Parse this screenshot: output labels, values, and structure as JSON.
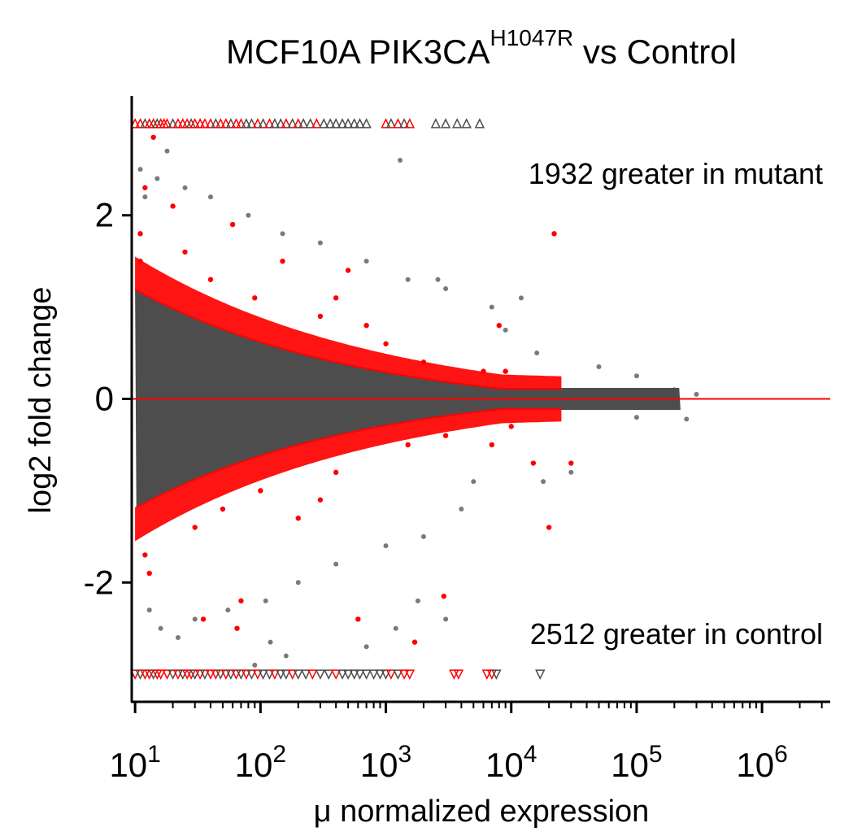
{
  "chart_data": {
    "type": "scatter",
    "title": {
      "prefix": "MCF10A  PIK3CA",
      "superscript": "H1047R",
      "suffix": " vs Control"
    },
    "xlabel": "μ normalized expression",
    "ylabel": "log2 fold change",
    "x_scale": "log10",
    "xlim": [
      9.4,
      3500000
    ],
    "ylim": [
      -3.3,
      3.3
    ],
    "x_ticks": [
      {
        "value": 10,
        "base": "10",
        "exp": "1"
      },
      {
        "value": 100,
        "base": "10",
        "exp": "2"
      },
      {
        "value": 1000,
        "base": "10",
        "exp": "3"
      },
      {
        "value": 10000,
        "base": "10",
        "exp": "4"
      },
      {
        "value": 100000,
        "base": "10",
        "exp": "5"
      },
      {
        "value": 1000000,
        "base": "10",
        "exp": "6"
      }
    ],
    "y_ticks": [
      {
        "value": 2,
        "label": "2"
      },
      {
        "value": 0,
        "label": "0"
      },
      {
        "value": -2,
        "label": "-2"
      }
    ],
    "reference_line": {
      "y": 0,
      "color": "#ff0000"
    },
    "clip_value": 3,
    "grid": false,
    "legend": "none",
    "colors": {
      "not_significant": "#4d4d4d",
      "significant": "#ff0000"
    },
    "annotations": {
      "up": "1932 greater in mutant",
      "down": "2512 greater in control"
    },
    "counts": {
      "up": 1932,
      "down": 2512
    },
    "series": [
      {
        "points": [
          [
            11,
            2.5
          ],
          [
            12,
            2.2
          ],
          [
            13,
            -2.3
          ],
          [
            15,
            2.4
          ],
          [
            16,
            -2.5
          ],
          [
            18,
            2.7
          ],
          [
            22,
            -2.6
          ],
          [
            25,
            2.3
          ],
          [
            30,
            -2.4
          ],
          [
            40,
            2.2
          ],
          [
            55,
            -2.3
          ],
          [
            80,
            2.0
          ],
          [
            110,
            -2.2
          ],
          [
            150,
            1.8
          ],
          [
            200,
            -2.0
          ],
          [
            300,
            1.7
          ],
          [
            400,
            -1.8
          ],
          [
            700,
            1.5
          ],
          [
            1000,
            -1.6
          ],
          [
            1500,
            1.3
          ],
          [
            2000,
            -1.5
          ],
          [
            3000,
            1.2
          ],
          [
            4000,
            -1.2
          ],
          [
            2600,
            1.3
          ],
          [
            1300,
            2.6
          ],
          [
            16000,
            0.5
          ],
          [
            9000,
            0.75
          ],
          [
            50000,
            0.35
          ],
          [
            30000,
            -0.8
          ],
          [
            100000,
            -0.2
          ],
          [
            200000,
            0.1
          ],
          [
            300000,
            0.05
          ],
          [
            250000,
            -0.22
          ],
          [
            100000,
            0.25
          ],
          [
            7000,
            1.0
          ],
          [
            5000,
            -0.9
          ],
          [
            1800,
            -2.2
          ],
          [
            1200,
            -2.5
          ],
          [
            700,
            -2.7
          ],
          [
            160,
            -2.8
          ],
          [
            90,
            -2.9
          ],
          [
            120,
            -2.65
          ],
          [
            3000,
            -2.4
          ],
          [
            12000,
            1.1
          ],
          [
            18000,
            -0.9
          ]
        ]
      },
      {
        "points": [
          [
            11,
            1.5
          ],
          [
            11,
            1.8
          ],
          [
            12,
            -1.7
          ],
          [
            13,
            -1.9
          ],
          [
            12,
            2.3
          ],
          [
            14,
            2.85
          ],
          [
            20,
            2.1
          ],
          [
            25,
            1.6
          ],
          [
            30,
            -1.4
          ],
          [
            40,
            1.3
          ],
          [
            50,
            -1.2
          ],
          [
            60,
            1.9
          ],
          [
            70,
            -2.2
          ],
          [
            90,
            1.1
          ],
          [
            100,
            -1.0
          ],
          [
            150,
            1.5
          ],
          [
            200,
            -1.3
          ],
          [
            300,
            0.9
          ],
          [
            400,
            -0.8
          ],
          [
            500,
            1.4
          ],
          [
            700,
            0.8
          ],
          [
            1000,
            0.6
          ],
          [
            1500,
            -0.5
          ],
          [
            2000,
            0.4
          ],
          [
            3000,
            -0.4
          ],
          [
            6000,
            0.3
          ],
          [
            9000,
            0.3
          ],
          [
            10000,
            -0.3
          ],
          [
            22000,
            1.8
          ],
          [
            20000,
            -1.4
          ],
          [
            15000,
            -0.7
          ],
          [
            8000,
            0.8
          ],
          [
            1700,
            -2.65
          ],
          [
            600,
            -2.4
          ],
          [
            2900,
            -2.15
          ],
          [
            65,
            -2.5
          ],
          [
            35,
            -2.4
          ],
          [
            400,
            1.1
          ],
          [
            300,
            -1.1
          ],
          [
            7000,
            -0.5
          ],
          [
            30000,
            -0.7
          ]
        ]
      }
    ],
    "clipped": {
      "up": [
        {
          "x": 10,
          "sig": true
        },
        {
          "x": 11,
          "sig": true
        },
        {
          "x": 12,
          "sig": false
        },
        {
          "x": 13,
          "sig": true
        },
        {
          "x": 14,
          "sig": true
        },
        {
          "x": 15,
          "sig": false
        },
        {
          "x": 16,
          "sig": true
        },
        {
          "x": 17,
          "sig": true
        },
        {
          "x": 18,
          "sig": true
        },
        {
          "x": 20,
          "sig": false
        },
        {
          "x": 22,
          "sig": true
        },
        {
          "x": 24,
          "sig": true
        },
        {
          "x": 26,
          "sig": true
        },
        {
          "x": 28,
          "sig": false
        },
        {
          "x": 30,
          "sig": true
        },
        {
          "x": 33,
          "sig": true
        },
        {
          "x": 36,
          "sig": true
        },
        {
          "x": 40,
          "sig": true
        },
        {
          "x": 44,
          "sig": false
        },
        {
          "x": 48,
          "sig": true
        },
        {
          "x": 53,
          "sig": true
        },
        {
          "x": 58,
          "sig": false
        },
        {
          "x": 64,
          "sig": true
        },
        {
          "x": 70,
          "sig": true
        },
        {
          "x": 77,
          "sig": false
        },
        {
          "x": 85,
          "sig": false
        },
        {
          "x": 95,
          "sig": true
        },
        {
          "x": 105,
          "sig": false
        },
        {
          "x": 118,
          "sig": true
        },
        {
          "x": 130,
          "sig": false
        },
        {
          "x": 145,
          "sig": false
        },
        {
          "x": 160,
          "sig": true
        },
        {
          "x": 180,
          "sig": false
        },
        {
          "x": 200,
          "sig": true
        },
        {
          "x": 220,
          "sig": false
        },
        {
          "x": 250,
          "sig": false
        },
        {
          "x": 280,
          "sig": true
        },
        {
          "x": 320,
          "sig": false
        },
        {
          "x": 360,
          "sig": false
        },
        {
          "x": 400,
          "sig": false
        },
        {
          "x": 450,
          "sig": false
        },
        {
          "x": 500,
          "sig": false
        },
        {
          "x": 560,
          "sig": false
        },
        {
          "x": 620,
          "sig": false
        },
        {
          "x": 700,
          "sig": false
        },
        {
          "x": 1000,
          "sig": true
        },
        {
          "x": 1100,
          "sig": false
        },
        {
          "x": 1250,
          "sig": true
        },
        {
          "x": 1400,
          "sig": false
        },
        {
          "x": 1550,
          "sig": true
        },
        {
          "x": 2500,
          "sig": false
        },
        {
          "x": 3000,
          "sig": false
        },
        {
          "x": 3700,
          "sig": false
        },
        {
          "x": 4400,
          "sig": false
        },
        {
          "x": 5600,
          "sig": false
        }
      ],
      "down": [
        {
          "x": 10,
          "sig": true
        },
        {
          "x": 11,
          "sig": false
        },
        {
          "x": 12,
          "sig": true
        },
        {
          "x": 13,
          "sig": true
        },
        {
          "x": 14,
          "sig": false
        },
        {
          "x": 15,
          "sig": true
        },
        {
          "x": 16,
          "sig": true
        },
        {
          "x": 18,
          "sig": true
        },
        {
          "x": 20,
          "sig": false
        },
        {
          "x": 22,
          "sig": true
        },
        {
          "x": 24,
          "sig": false
        },
        {
          "x": 26,
          "sig": true
        },
        {
          "x": 28,
          "sig": true
        },
        {
          "x": 30,
          "sig": false
        },
        {
          "x": 33,
          "sig": true
        },
        {
          "x": 36,
          "sig": false
        },
        {
          "x": 40,
          "sig": true
        },
        {
          "x": 44,
          "sig": true
        },
        {
          "x": 48,
          "sig": false
        },
        {
          "x": 53,
          "sig": true
        },
        {
          "x": 58,
          "sig": false
        },
        {
          "x": 64,
          "sig": true
        },
        {
          "x": 70,
          "sig": false
        },
        {
          "x": 77,
          "sig": true
        },
        {
          "x": 85,
          "sig": false
        },
        {
          "x": 95,
          "sig": true
        },
        {
          "x": 105,
          "sig": false
        },
        {
          "x": 118,
          "sig": false
        },
        {
          "x": 130,
          "sig": true
        },
        {
          "x": 145,
          "sig": false
        },
        {
          "x": 160,
          "sig": false
        },
        {
          "x": 180,
          "sig": true
        },
        {
          "x": 200,
          "sig": false
        },
        {
          "x": 230,
          "sig": false
        },
        {
          "x": 260,
          "sig": true
        },
        {
          "x": 300,
          "sig": false
        },
        {
          "x": 350,
          "sig": false
        },
        {
          "x": 400,
          "sig": true
        },
        {
          "x": 450,
          "sig": false
        },
        {
          "x": 500,
          "sig": false
        },
        {
          "x": 560,
          "sig": false
        },
        {
          "x": 620,
          "sig": false
        },
        {
          "x": 700,
          "sig": false
        },
        {
          "x": 800,
          "sig": false
        },
        {
          "x": 900,
          "sig": false
        },
        {
          "x": 1000,
          "sig": false
        },
        {
          "x": 1100,
          "sig": true
        },
        {
          "x": 1250,
          "sig": false
        },
        {
          "x": 1400,
          "sig": true
        },
        {
          "x": 1550,
          "sig": true
        },
        {
          "x": 3500,
          "sig": true
        },
        {
          "x": 3800,
          "sig": true
        },
        {
          "x": 6400,
          "sig": true
        },
        {
          "x": 7000,
          "sig": true
        },
        {
          "x": 7600,
          "sig": false
        },
        {
          "x": 17000,
          "sig": false
        }
      ]
    }
  }
}
